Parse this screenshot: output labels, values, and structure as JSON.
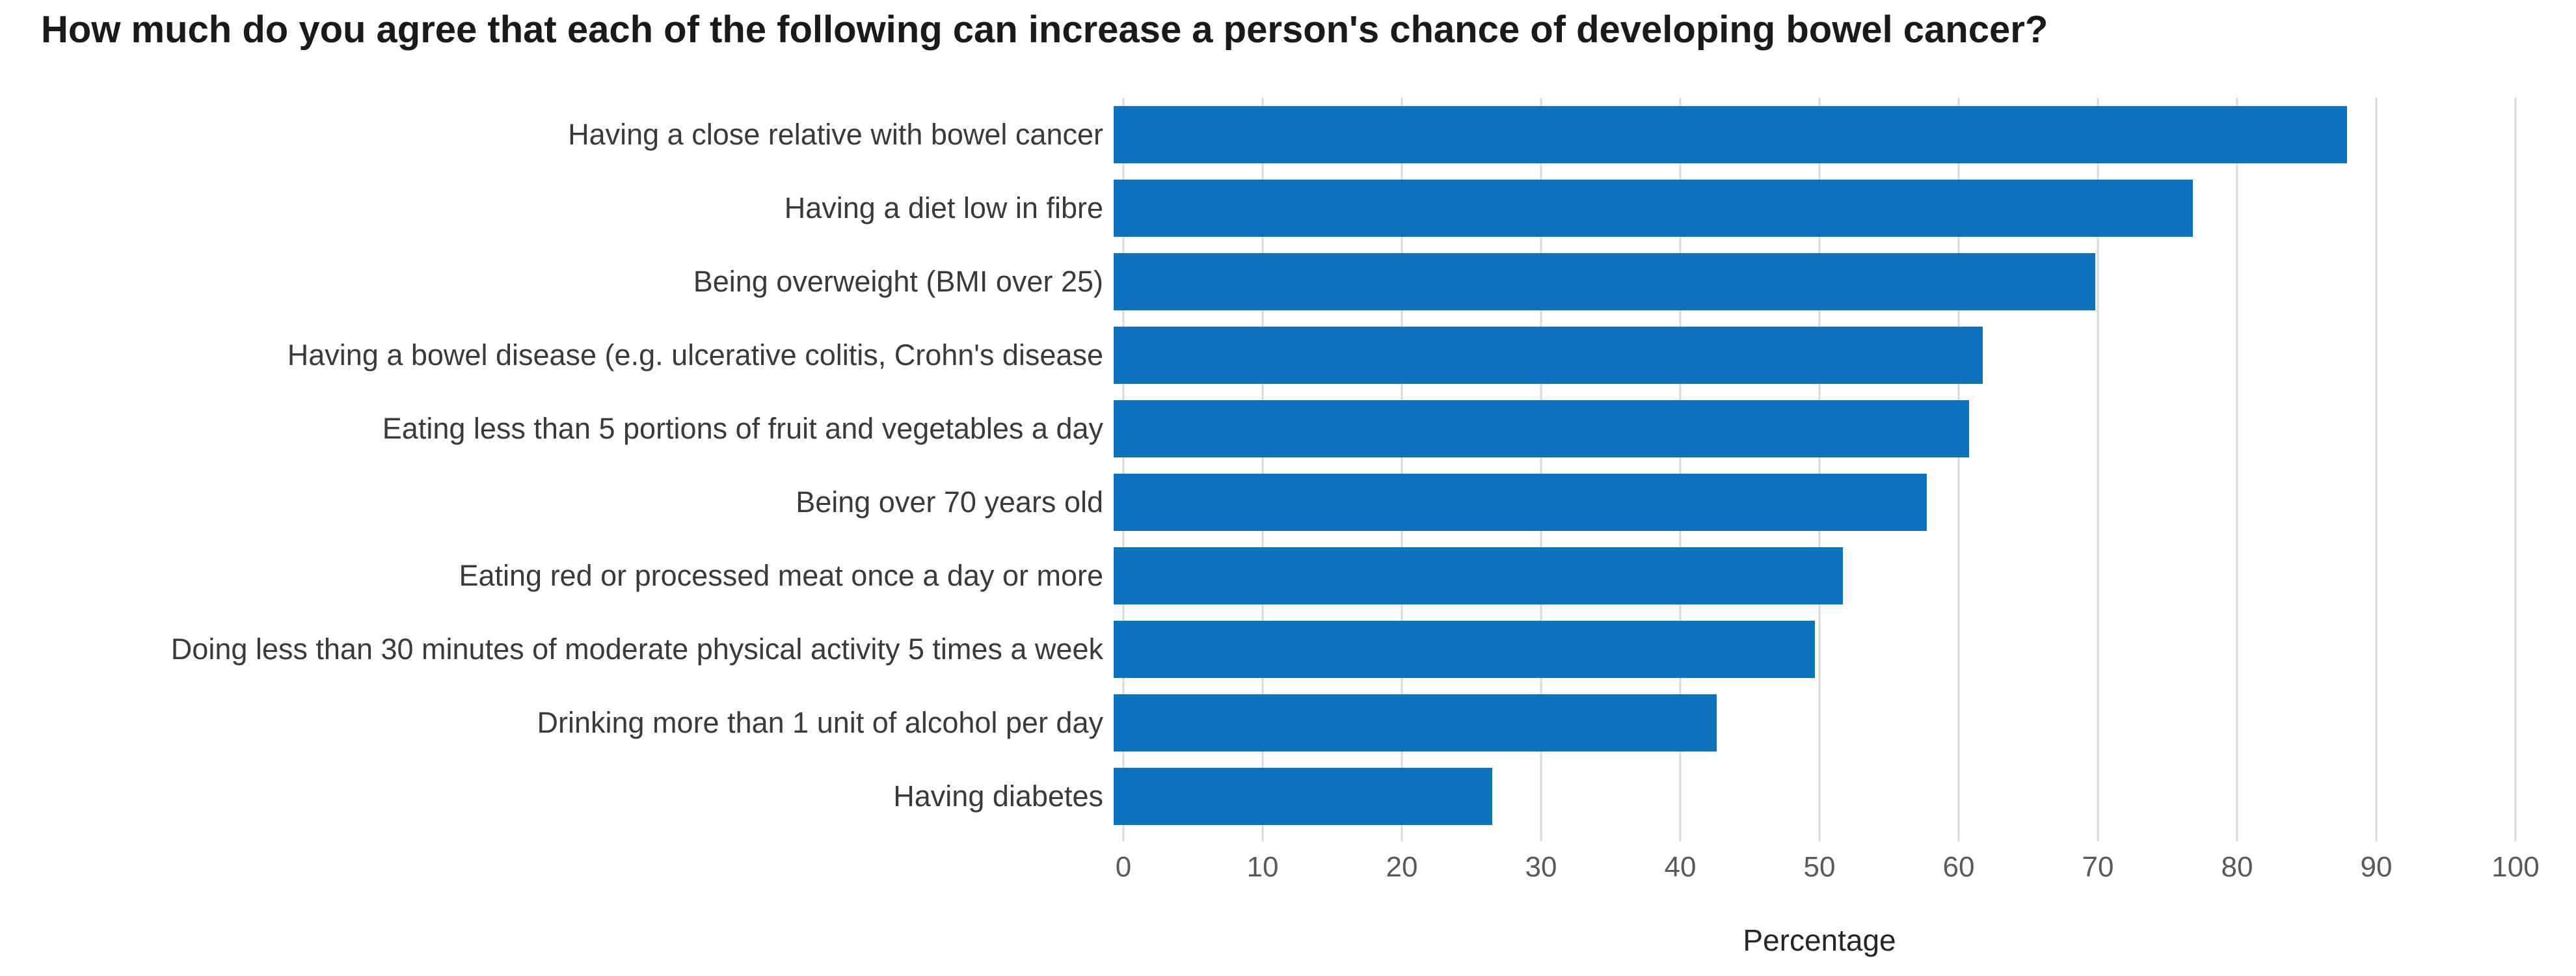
{
  "title": "How much do you agree that each of the following can increase a person's chance of developing bowel cancer?",
  "chart_data": {
    "type": "bar",
    "orientation": "horizontal",
    "title": "How much do you agree that each of the following can increase a person's chance of developing bowel cancer?",
    "categories": [
      "Having a close relative with bowel cancer",
      "Having a diet low in fibre",
      "Being overweight (BMI over 25)",
      "Having a bowel disease (e.g. ulcerative colitis, Crohn's disease",
      "Eating less than 5 portions of fruit and vegetables a day",
      "Being over 70 years old",
      "Eating red or processed meat once a day or more",
      "Doing less than 30 minutes of moderate physical activity 5 times a week",
      "Drinking more than 1 unit of alcohol per day",
      "Having diabetes"
    ],
    "values": [
      88,
      77,
      70,
      62,
      61,
      58,
      52,
      50,
      43,
      27
    ],
    "xlabel": "Percentage",
    "ylabel": "",
    "xlim": [
      0,
      100
    ],
    "x_ticks": [
      0,
      10,
      20,
      30,
      40,
      50,
      60,
      70,
      80,
      90,
      100
    ],
    "grid": "vertical",
    "legend": "none",
    "bar_color": "#0e72bc",
    "gridline_color": "#d9d9d9",
    "tick_color": "#595959",
    "label_color": "#3a3a3a",
    "title_color": "#1a1a1a"
  }
}
